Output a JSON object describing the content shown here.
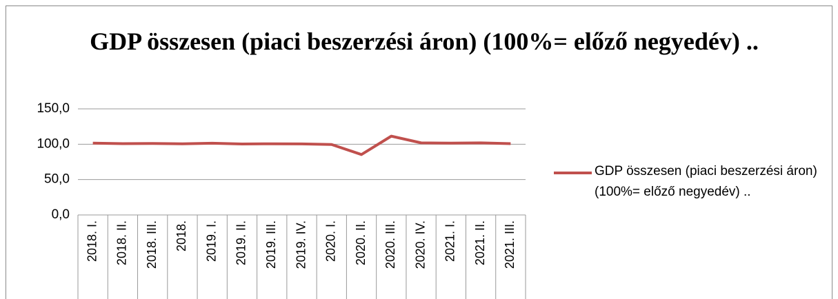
{
  "chart_data": {
    "type": "line",
    "title": "GDP összesen (piaci beszerzési áron) (100%= előző negyedév) ..",
    "categories": [
      "2018. I.",
      "2018. II.",
      "2018. III.",
      "2018.",
      "2019. I.",
      "2019. II.",
      "2019. III.",
      "2019. IV.",
      "2020. I.",
      "2020. II.",
      "2020. III.",
      "2020. IV.",
      "2021. I.",
      "2021. II.",
      "2021. III."
    ],
    "series": [
      {
        "name": "GDP összesen (piaci beszerzési áron) (100%= előző negyedév) ..",
        "color": "#c0504d",
        "values": [
          101.5,
          100.8,
          101.0,
          100.6,
          101.4,
          100.3,
          100.6,
          100.5,
          99.6,
          85.4,
          111.4,
          101.9,
          101.5,
          101.9,
          100.8
        ]
      }
    ],
    "ylim": [
      0,
      150
    ],
    "yticks": [
      {
        "value": 0,
        "label": "0,0"
      },
      {
        "value": 50,
        "label": "50,0"
      },
      {
        "value": 100,
        "label": "100,0"
      },
      {
        "value": 150,
        "label": "150,0"
      }
    ],
    "grid": true,
    "legend": "right"
  }
}
